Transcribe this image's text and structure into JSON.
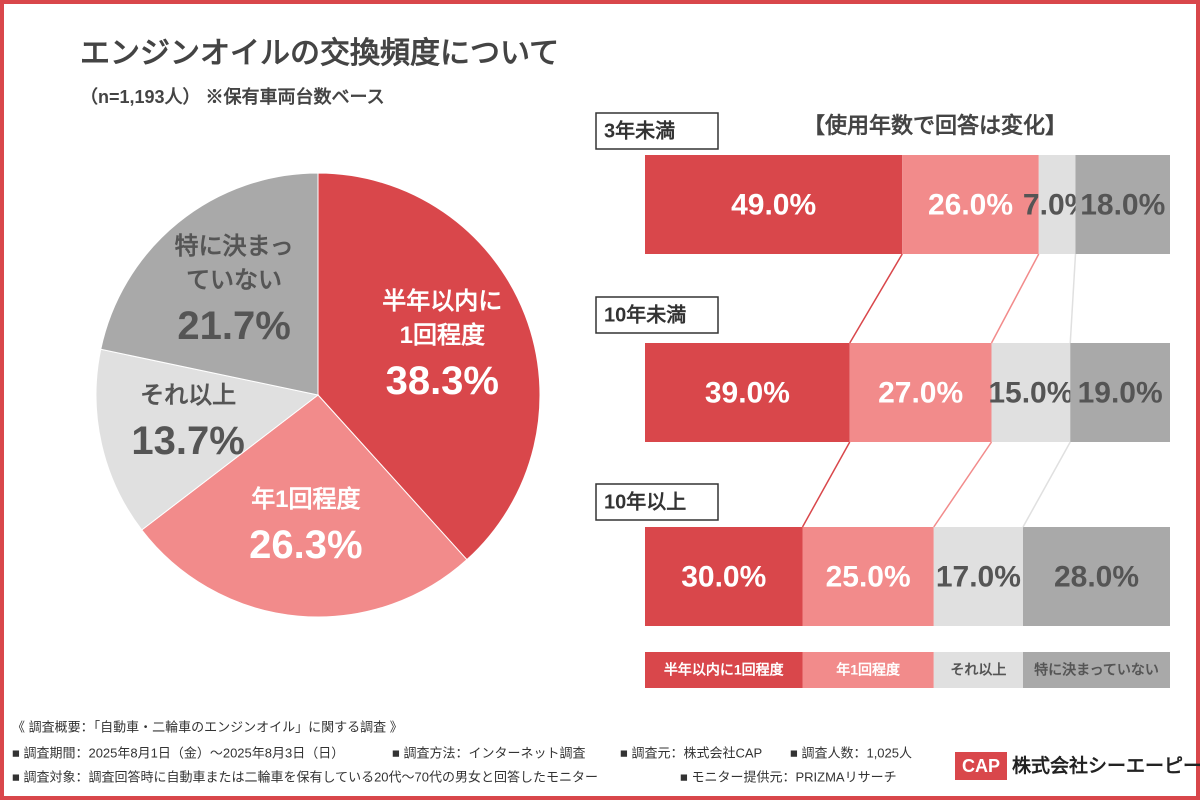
{
  "chart_data": [
    {
      "type": "pie",
      "title": "エンジンオイルの交換頻度について",
      "subtitle": "（n=1,193人） ※保有車両台数ベース",
      "categories": [
        "半年以内に1回程度",
        "年1回程度",
        "それ以上",
        "特に決まっていない"
      ],
      "values": [
        38.3,
        26.3,
        13.7,
        21.7
      ],
      "value_labels": [
        "38.3%",
        "26.3%",
        "13.7%",
        "21.7%"
      ],
      "colors": [
        "#d9474b",
        "#f28b8b",
        "#e0e0e0",
        "#a9a9a9"
      ]
    },
    {
      "type": "stacked_bar",
      "title": "【使用年数で回答は変化】",
      "categories": [
        "3年未満",
        "10年未満",
        "10年以上"
      ],
      "xlim": [
        0,
        100
      ],
      "series": [
        {
          "name": "半年以内に1回程度",
          "color": "#d9474b",
          "values": [
            49,
            39,
            30
          ],
          "value_labels": [
            "49.0%",
            "39.0%",
            "30.0%"
          ]
        },
        {
          "name": "年1回程度",
          "color": "#f28b8b",
          "values": [
            26,
            27,
            25
          ],
          "value_labels": [
            "26.0%",
            "27.0%",
            "25.0%"
          ]
        },
        {
          "name": "それ以上",
          "color": "#e0e0e0",
          "values": [
            7,
            15,
            17
          ],
          "value_labels": [
            "7.0%",
            "15.0%",
            "17.0%"
          ]
        },
        {
          "name": "特に決まっていない",
          "color": "#a9a9a9",
          "values": [
            18,
            19,
            28
          ],
          "value_labels": [
            "18.0%",
            "19.0%",
            "28.0%"
          ]
        }
      ]
    }
  ],
  "footer": {
    "heading": "《 調査概要：「自動車・二輪車のエンジンオイル」に関する調査 》",
    "items": [
      "■ 調査期間：2025年8月1日（金）～2025年8月3日（日）",
      "■ 調査方法：インターネット調査",
      "■ 調査元：株式会社CAP",
      "■ 調査人数：1,025人",
      "■ 調査対象：調査回答時に自動車または二輪車を保有している20代～70代の男女と回答したモニター",
      "■ モニター提供元：PRIZMAリサーチ"
    ]
  },
  "logo": {
    "mark": "CAP",
    "company": "株式会社シーエーピー"
  }
}
